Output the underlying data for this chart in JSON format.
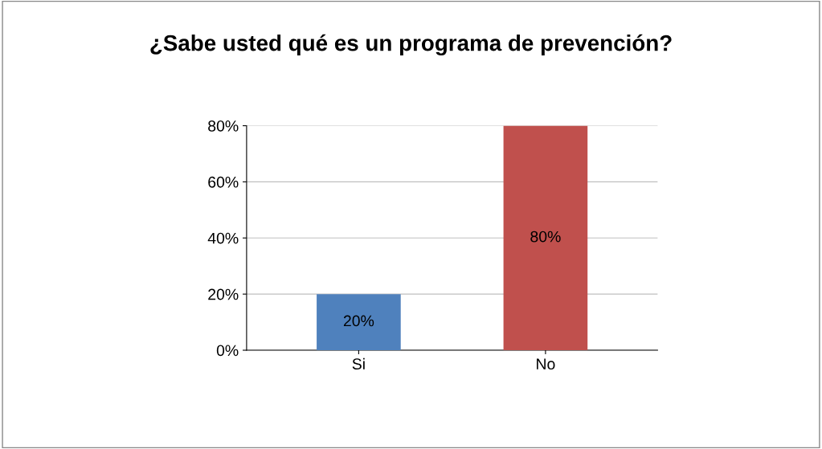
{
  "chart_data": {
    "type": "bar",
    "title": "¿Sabe usted qué es un programa de prevención?",
    "categories": [
      "Si",
      "No"
    ],
    "values": [
      20,
      80
    ],
    "colors": [
      "#4f81bd",
      "#c0504d"
    ],
    "data_labels": true,
    "value_labels": [
      "20%",
      "80%"
    ],
    "ylim": [
      0,
      80
    ],
    "yticks": [
      {
        "value": 0,
        "label": "0%"
      },
      {
        "value": 20,
        "label": "20%"
      },
      {
        "value": 40,
        "label": "40%"
      },
      {
        "value": 60,
        "label": "60%"
      },
      {
        "value": 80,
        "label": "80%"
      }
    ],
    "grid": "y",
    "legend": false
  }
}
